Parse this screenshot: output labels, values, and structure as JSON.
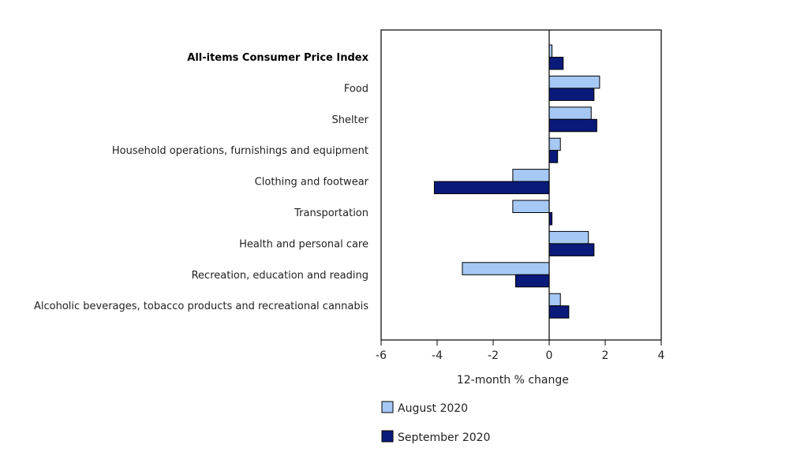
{
  "chart_data": {
    "type": "bar",
    "orientation": "horizontal",
    "categories": [
      "All-items Consumer Price Index",
      "Food",
      "Shelter",
      "Household operations, furnishings and equipment",
      "Clothing and footwear",
      "Transportation",
      "Health and personal care",
      "Recreation, education and reading",
      "Alcoholic beverages, tobacco products and recreational cannabis"
    ],
    "bold_categories": [
      "All-items Consumer Price Index"
    ],
    "series": [
      {
        "name": "August 2020",
        "color": "#a6c8f5",
        "values": [
          0.1,
          1.8,
          1.5,
          0.4,
          -1.3,
          -1.3,
          1.4,
          -3.1,
          0.4
        ]
      },
      {
        "name": "September 2020",
        "color": "#0a1a7a",
        "values": [
          0.5,
          1.6,
          1.7,
          0.3,
          -4.1,
          0.1,
          1.6,
          -1.2,
          0.7
        ]
      }
    ],
    "xlabel": "12-month % change",
    "xlim": [
      -6,
      4
    ],
    "xticks": [
      -6,
      -4,
      -2,
      0,
      2,
      4
    ],
    "grid": false,
    "legend_position": "bottom"
  }
}
